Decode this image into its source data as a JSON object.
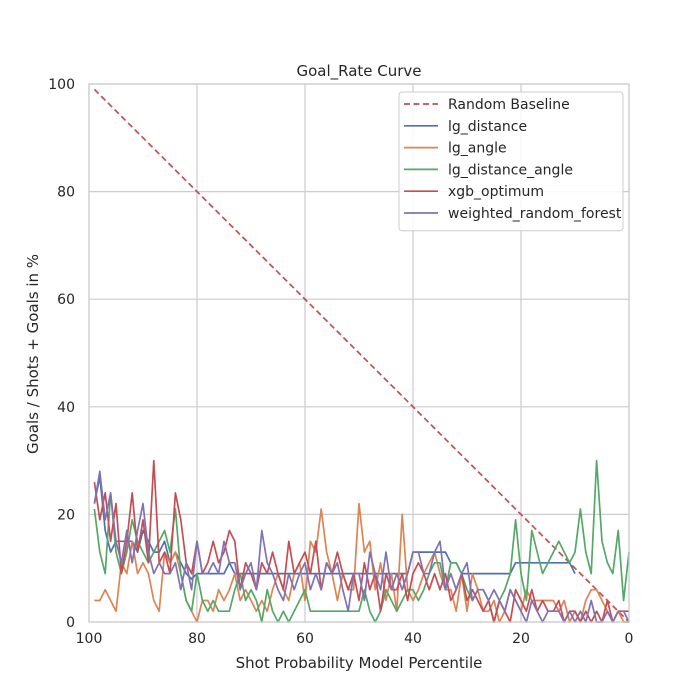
{
  "chart_data": {
    "type": "line",
    "title": "Goal_Rate Curve",
    "xlabel": "Shot Probability Model Percentile",
    "ylabel": "Goals / Shots + Goals in %",
    "xlim": [
      100,
      0
    ],
    "ylim": [
      0,
      100
    ],
    "xticks": [
      100,
      80,
      60,
      40,
      20,
      0
    ],
    "yticks": [
      0,
      20,
      40,
      60,
      80,
      100
    ],
    "grid": true,
    "legend_position": "top-right",
    "series": [
      {
        "name": "Random Baseline",
        "color": "#c44e52",
        "dashed": true,
        "x": [
          99,
          0
        ],
        "y": [
          99,
          0
        ]
      },
      {
        "name": "lg_distance",
        "color": "#4c72b0",
        "x": [
          99,
          98,
          97,
          96,
          95,
          94,
          93,
          92,
          91,
          90,
          89,
          88,
          87,
          86,
          85,
          84,
          83,
          82,
          81,
          80,
          79,
          78,
          77,
          76,
          75,
          74,
          73,
          72,
          71,
          70,
          69,
          68,
          67,
          66,
          65,
          64,
          63,
          62,
          61,
          60,
          59,
          58,
          57,
          56,
          55,
          54,
          53,
          52,
          51,
          50,
          49,
          48,
          47,
          46,
          45,
          44,
          43,
          42,
          41,
          40,
          39,
          38,
          37,
          36,
          35,
          34,
          33,
          32,
          31,
          30,
          29,
          28,
          27,
          26,
          25,
          24,
          23,
          22,
          21,
          20,
          19,
          18,
          17,
          16,
          15,
          14,
          13,
          12,
          11,
          10
        ],
        "y": [
          22,
          27,
          17,
          13,
          15,
          15,
          15,
          15,
          13,
          17,
          15,
          13,
          13,
          15,
          11,
          13,
          11,
          9,
          8,
          9,
          9,
          9,
          9,
          9,
          9,
          11,
          9,
          9,
          9,
          9,
          9,
          9,
          9,
          9,
          9,
          9,
          9,
          9,
          9,
          9,
          9,
          9,
          9,
          9,
          9,
          9,
          9,
          9,
          9,
          9,
          9,
          9,
          9,
          9,
          9,
          9,
          9,
          9,
          9,
          13,
          13,
          13,
          13,
          13,
          13,
          13,
          11,
          11,
          9,
          9,
          9,
          9,
          9,
          9,
          9,
          9,
          9,
          9,
          11,
          11,
          11,
          11,
          11,
          11,
          11,
          11,
          11,
          11,
          11,
          9
        ]
      },
      {
        "name": "lg_angle",
        "color": "#dd8452",
        "x": [
          99,
          98,
          97,
          96,
          95,
          94,
          93,
          92,
          91,
          90,
          89,
          88,
          87,
          86,
          85,
          84,
          83,
          82,
          81,
          80,
          79,
          78,
          77,
          76,
          75,
          74,
          73,
          72,
          71,
          70,
          69,
          68,
          67,
          66,
          65,
          64,
          63,
          62,
          61,
          60,
          59,
          58,
          57,
          56,
          55,
          54,
          53,
          52,
          51,
          50,
          49,
          48,
          47,
          46,
          45,
          44,
          43,
          42,
          41,
          40,
          39,
          38,
          37,
          36,
          35,
          34,
          33,
          32,
          31,
          30,
          29,
          28,
          27,
          26,
          25,
          24,
          23,
          22,
          21,
          20,
          19,
          18,
          17,
          16,
          15,
          14,
          13,
          12,
          11,
          10,
          9,
          8,
          7,
          6,
          5,
          4,
          3,
          2,
          1,
          0
        ],
        "y": [
          4,
          4,
          6,
          4,
          2,
          11,
          9,
          15,
          9,
          11,
          9,
          4,
          2,
          13,
          11,
          13,
          9,
          4,
          2,
          0,
          4,
          4,
          2,
          6,
          4,
          6,
          9,
          4,
          6,
          4,
          2,
          4,
          2,
          6,
          9,
          6,
          4,
          9,
          11,
          4,
          15,
          13,
          21,
          13,
          9,
          4,
          9,
          6,
          6,
          22,
          13,
          15,
          6,
          11,
          4,
          9,
          2,
          20,
          6,
          4,
          6,
          9,
          11,
          13,
          9,
          6,
          6,
          2,
          9,
          2,
          9,
          6,
          2,
          2,
          4,
          0,
          2,
          6,
          4,
          2,
          6,
          4,
          4,
          4,
          4,
          4,
          2,
          4,
          0,
          2,
          0,
          4,
          6,
          6,
          4,
          2,
          0,
          2,
          0,
          0
        ]
      },
      {
        "name": "lg_distance_angle",
        "color": "#55a868",
        "x": [
          99,
          98,
          97,
          96,
          95,
          94,
          93,
          92,
          91,
          90,
          89,
          88,
          87,
          86,
          85,
          84,
          83,
          82,
          81,
          80,
          79,
          78,
          77,
          76,
          75,
          74,
          73,
          72,
          71,
          70,
          69,
          68,
          67,
          66,
          65,
          64,
          63,
          62,
          61,
          60,
          59,
          58,
          57,
          56,
          55,
          54,
          53,
          52,
          51,
          50,
          49,
          48,
          47,
          46,
          45,
          44,
          43,
          42,
          41,
          40,
          39,
          38,
          37,
          36,
          35,
          34,
          33,
          32,
          31,
          30,
          29,
          28,
          27,
          26,
          25,
          24,
          23,
          22,
          21,
          20,
          19,
          18,
          17,
          16,
          15,
          14,
          13,
          12,
          11,
          10,
          9,
          8,
          7,
          6,
          5,
          4,
          3,
          2,
          1,
          0
        ],
        "y": [
          21,
          13,
          9,
          24,
          13,
          9,
          13,
          19,
          15,
          13,
          11,
          13,
          15,
          17,
          13,
          21,
          9,
          4,
          2,
          9,
          4,
          2,
          4,
          2,
          2,
          2,
          6,
          9,
          4,
          6,
          4,
          0,
          6,
          2,
          0,
          2,
          0,
          2,
          4,
          6,
          2,
          2,
          2,
          2,
          2,
          2,
          2,
          2,
          2,
          2,
          6,
          2,
          0,
          2,
          6,
          4,
          2,
          4,
          6,
          6,
          4,
          6,
          9,
          11,
          11,
          6,
          11,
          11,
          9,
          6,
          4,
          6,
          6,
          4,
          0,
          4,
          6,
          9,
          19,
          9,
          4,
          17,
          13,
          9,
          11,
          13,
          15,
          13,
          11,
          13,
          21,
          13,
          9,
          30,
          15,
          11,
          9,
          17,
          4,
          13
        ]
      },
      {
        "name": "xgb_optimum",
        "color": "#c44e52",
        "x": [
          99,
          98,
          97,
          96,
          95,
          94,
          93,
          92,
          91,
          90,
          89,
          88,
          87,
          86,
          85,
          84,
          83,
          82,
          81,
          80,
          79,
          78,
          77,
          76,
          75,
          74,
          73,
          72,
          71,
          70,
          69,
          68,
          67,
          66,
          65,
          64,
          63,
          62,
          61,
          60,
          59,
          58,
          57,
          56,
          55,
          54,
          53,
          52,
          51,
          50,
          49,
          48,
          47,
          46,
          45,
          44,
          43,
          42,
          41,
          40,
          39,
          38,
          37,
          36,
          35,
          34,
          33,
          32,
          31,
          30,
          29,
          28,
          27,
          26,
          25,
          24,
          23,
          22,
          21,
          20,
          19,
          18,
          17,
          16,
          15,
          14,
          13,
          12,
          11,
          10,
          9,
          8,
          7,
          6,
          5,
          4,
          3,
          2,
          1,
          0
        ],
        "y": [
          26,
          19,
          24,
          15,
          22,
          9,
          15,
          24,
          13,
          19,
          11,
          30,
          11,
          13,
          9,
          24,
          19,
          11,
          9,
          15,
          9,
          11,
          15,
          11,
          13,
          17,
          15,
          6,
          11,
          9,
          6,
          11,
          9,
          13,
          9,
          6,
          15,
          9,
          11,
          13,
          9,
          15,
          6,
          11,
          9,
          13,
          9,
          6,
          9,
          4,
          11,
          6,
          9,
          2,
          9,
          6,
          6,
          9,
          4,
          9,
          11,
          9,
          6,
          9,
          6,
          9,
          4,
          6,
          9,
          4,
          6,
          4,
          2,
          4,
          0,
          4,
          2,
          0,
          6,
          4,
          2,
          6,
          2,
          4,
          2,
          2,
          4,
          0,
          2,
          2,
          0,
          2,
          0,
          2,
          0,
          4,
          0,
          2,
          2,
          2
        ]
      },
      {
        "name": "weighted_random_forest",
        "color": "#8172b3",
        "x": [
          99,
          98,
          97,
          96,
          95,
          94,
          93,
          92,
          91,
          90,
          89,
          88,
          87,
          86,
          85,
          84,
          83,
          82,
          81,
          80,
          79,
          78,
          77,
          76,
          75,
          74,
          73,
          72,
          71,
          70,
          69,
          68,
          67,
          66,
          65,
          64,
          63,
          62,
          61,
          60,
          59,
          58,
          57,
          56,
          55,
          54,
          53,
          52,
          51,
          50,
          49,
          48,
          47,
          46,
          45,
          44,
          43,
          42,
          41,
          40,
          39,
          38,
          37,
          36,
          35,
          34,
          33,
          32,
          31,
          30,
          29,
          28,
          27,
          26,
          25,
          24,
          23,
          22,
          21,
          20,
          19,
          18,
          17,
          16,
          15,
          14,
          13,
          12,
          11,
          10,
          9,
          8,
          7,
          6,
          5,
          4,
          3,
          2,
          1,
          0
        ],
        "y": [
          22,
          28,
          19,
          24,
          15,
          11,
          17,
          11,
          17,
          22,
          13,
          9,
          11,
          9,
          9,
          11,
          6,
          11,
          6,
          15,
          9,
          9,
          11,
          9,
          15,
          11,
          11,
          6,
          9,
          11,
          6,
          17,
          11,
          9,
          6,
          4,
          9,
          6,
          9,
          11,
          6,
          9,
          6,
          11,
          9,
          11,
          6,
          2,
          9,
          9,
          4,
          13,
          9,
          6,
          13,
          6,
          9,
          6,
          9,
          13,
          13,
          9,
          9,
          13,
          15,
          6,
          9,
          6,
          9,
          11,
          4,
          6,
          6,
          4,
          6,
          4,
          2,
          6,
          4,
          2,
          0,
          4,
          2,
          0,
          2,
          2,
          2,
          0,
          2,
          0,
          2,
          0,
          4,
          0,
          0,
          2,
          0,
          2,
          2,
          0
        ]
      }
    ]
  }
}
